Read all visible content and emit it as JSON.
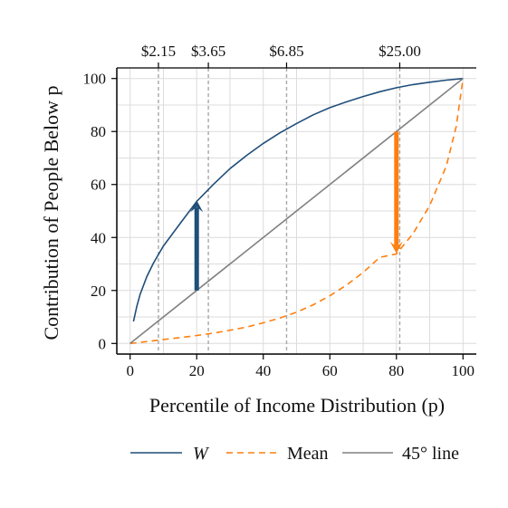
{
  "chart_data": {
    "type": "line",
    "xlabel": "Percentile of Income Distribution (p)",
    "ylabel": "Contribution of People Below p",
    "xlim": [
      0,
      100
    ],
    "ylim": [
      0,
      100
    ],
    "x_ticks": [
      0,
      20,
      40,
      60,
      80,
      100
    ],
    "x_tick_labels": [
      "0",
      "20",
      "40",
      "60",
      "80",
      "100"
    ],
    "y_ticks": [
      0,
      20,
      40,
      60,
      80,
      100
    ],
    "y_tick_labels": [
      "0",
      "20",
      "40",
      "60",
      "80",
      "100"
    ],
    "grid": true,
    "series": [
      {
        "name": "W",
        "style": "solid",
        "color": "#1f4e79",
        "points": [
          [
            1,
            8.3
          ],
          [
            2,
            14
          ],
          [
            3,
            18.5
          ],
          [
            5,
            25.2
          ],
          [
            7,
            30.3
          ],
          [
            10,
            36.8
          ],
          [
            15,
            45.2
          ],
          [
            20,
            53.6
          ],
          [
            25,
            60
          ],
          [
            30,
            66
          ],
          [
            35,
            71
          ],
          [
            40,
            75.5
          ],
          [
            45,
            79.5
          ],
          [
            50,
            83
          ],
          [
            55,
            86.3
          ],
          [
            60,
            89
          ],
          [
            65,
            91.2
          ],
          [
            70,
            93.2
          ],
          [
            75,
            95
          ],
          [
            80,
            96.5
          ],
          [
            85,
            97.7
          ],
          [
            90,
            98.6
          ],
          [
            95,
            99.4
          ],
          [
            100,
            100
          ]
        ]
      },
      {
        "name": "Mean",
        "style": "dashed",
        "color": "#ff7f0e",
        "points": [
          [
            0,
            0
          ],
          [
            5,
            0.7
          ],
          [
            10,
            1.5
          ],
          [
            15,
            2.2
          ],
          [
            20,
            3
          ],
          [
            25,
            3.9
          ],
          [
            30,
            5
          ],
          [
            35,
            6.2
          ],
          [
            40,
            7.8
          ],
          [
            45,
            9.6
          ],
          [
            50,
            11.8
          ],
          [
            55,
            14.6
          ],
          [
            60,
            18
          ],
          [
            65,
            22
          ],
          [
            70,
            26.8
          ],
          [
            75,
            32.5
          ],
          [
            80,
            33.8
          ],
          [
            85,
            41.5
          ],
          [
            90,
            52
          ],
          [
            95,
            67
          ],
          [
            98,
            82
          ],
          [
            100,
            100
          ]
        ]
      },
      {
        "name": "45° line",
        "style": "solid",
        "color": "#808080",
        "points": [
          [
            0,
            0
          ],
          [
            100,
            100
          ]
        ]
      }
    ],
    "vlines": [
      8.5,
      23.5,
      47,
      81
    ],
    "top_axis_labels": [
      {
        "x": 8.5,
        "label": "$2.15"
      },
      {
        "x": 23.5,
        "label": "$3.65"
      },
      {
        "x": 47,
        "label": "$6.85"
      },
      {
        "x": 81,
        "label": "$25.00"
      }
    ],
    "arrows": [
      {
        "x": 20,
        "y_from": 20,
        "y_to": 54,
        "color": "#1f4e79"
      },
      {
        "x": 80,
        "y_from": 80,
        "y_to": 34,
        "color": "#ff7f0e"
      }
    ],
    "legend": {
      "placement": "bottom",
      "items": [
        {
          "label": "W",
          "style": "solid",
          "color": "#1f4e79",
          "italic": true
        },
        {
          "label": "Mean",
          "style": "dashed",
          "color": "#ff7f0e",
          "italic": false
        },
        {
          "label": "45° line",
          "style": "solid",
          "color": "#808080",
          "italic": false
        }
      ]
    }
  }
}
